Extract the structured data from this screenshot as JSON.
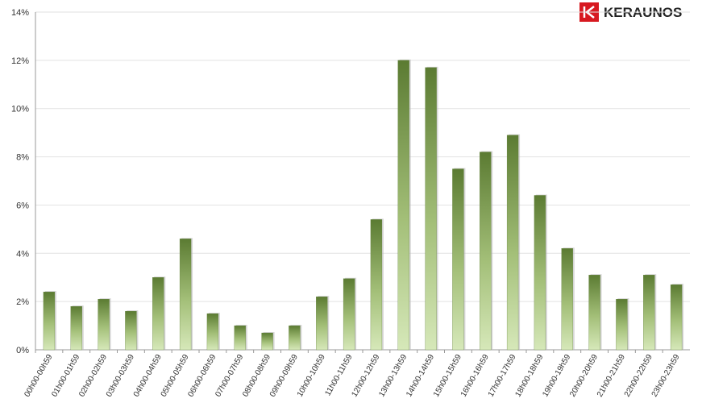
{
  "chart_data": {
    "type": "bar",
    "logo": "KERAUNOS",
    "categories": [
      "00h00-00h59",
      "01h00-01h59",
      "02h00-02h59",
      "03h00-03h59",
      "04h00-04h59",
      "05h00-05h59",
      "06h00-06h59",
      "07h00-07h59",
      "08h00-08h59",
      "09h00-09h59",
      "10h00-10h59",
      "11h00-11h59",
      "12h00-12h59",
      "13h00-13h59",
      "14h00-14h59",
      "15h00-15h59",
      "16h00-16h59",
      "17h00-17h59",
      "18h00-18h59",
      "19h00-19h59",
      "20h00-20h59",
      "21h00-21h59",
      "22h00-22h59",
      "23h00-23h59"
    ],
    "values": [
      2.4,
      1.8,
      2.1,
      1.6,
      3.0,
      4.6,
      1.5,
      1.0,
      0.7,
      1.0,
      2.2,
      2.95,
      5.4,
      12.0,
      11.7,
      7.5,
      8.2,
      8.9,
      6.4,
      4.2,
      3.1,
      2.1,
      3.1,
      2.7
    ],
    "color": "#5b7b32",
    "ylim": [
      0,
      14
    ],
    "yticks": [
      {
        "value": 0,
        "label": "0%"
      },
      {
        "value": 2,
        "label": "2%"
      },
      {
        "value": 4,
        "label": "4%"
      },
      {
        "value": 6,
        "label": "6%"
      },
      {
        "value": 8,
        "label": "8%"
      },
      {
        "value": 10,
        "label": "10%"
      },
      {
        "value": 12,
        "label": "12%"
      },
      {
        "value": 14,
        "label": "14%"
      }
    ],
    "grid": true
  }
}
